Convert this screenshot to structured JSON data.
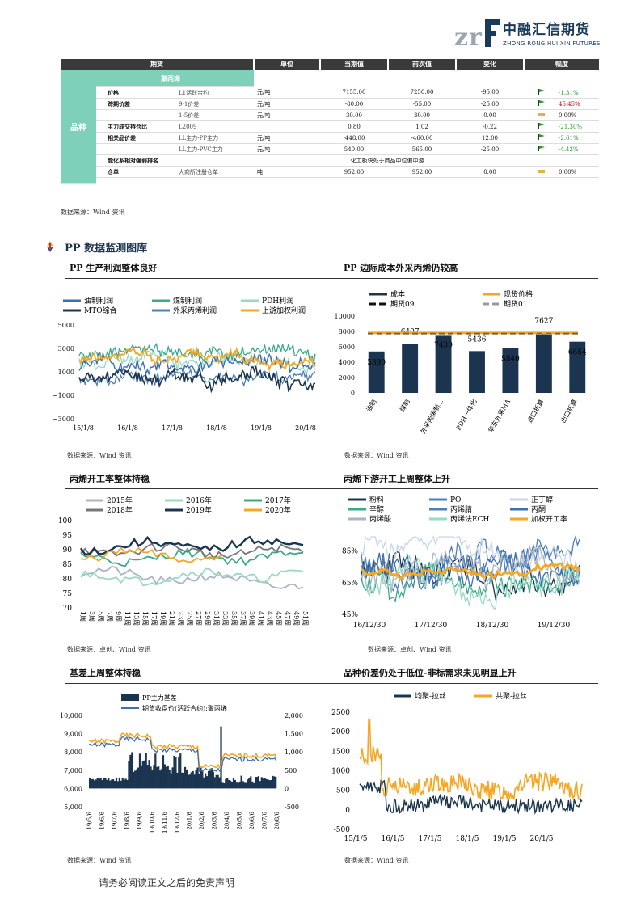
{
  "header": {
    "logo_cn": "中融汇信期货",
    "logo_en": "ZHONG RONG HUI XIN FUTURES"
  },
  "table": {
    "col_headers": [
      "期货",
      "单位",
      "当期值",
      "前次值",
      "变化",
      "幅度"
    ],
    "category": "品种",
    "sub_header": "聚丙烯",
    "rows": [
      {
        "label": "价格",
        "item": "L1活跃合约",
        "unit": "元/吨",
        "cur": "7155.00",
        "prev": "7250.00",
        "chg": "-95.00",
        "pct": "-1.31%",
        "dir": "neg"
      },
      {
        "label": "跨期价差",
        "item": "9-1价差",
        "unit": "元/吨",
        "cur": "-80.00",
        "prev": "-55.00",
        "chg": "-25.00",
        "pct": "45.45%",
        "dir": "pos"
      },
      {
        "label": "",
        "item": "1-5价差",
        "unit": "元/吨",
        "cur": "30.00",
        "prev": "30.00",
        "chg": "0.00",
        "pct": "0.00%",
        "dir": "flat"
      },
      {
        "label": "主力成交持仓比",
        "item": "L2009",
        "unit": "",
        "cur": "0.80",
        "prev": "1.02",
        "chg": "-0.22",
        "pct": "-21.30%",
        "dir": "neg"
      },
      {
        "label": "相关品价差",
        "item": "LL主力-PP主力",
        "unit": "元/吨",
        "cur": "-448.00",
        "prev": "-460.00",
        "chg": "12.00",
        "pct": "-2.61%",
        "dir": "neg"
      },
      {
        "label": "",
        "item": "LL主力-PVC主力",
        "unit": "元/吨",
        "cur": "540.00",
        "prev": "565.00",
        "chg": "-25.00",
        "pct": "-4.42%",
        "dir": "neg"
      },
      {
        "label": "能化系相对强弱排名",
        "item": "",
        "unit": "",
        "cur": "",
        "prev": "",
        "chg": "",
        "pct": "",
        "dir": "none",
        "span": "化工板块处于商品中位偏中游"
      },
      {
        "label": "仓单",
        "item": "大商所注册仓单",
        "unit": "吨",
        "cur": "952.00",
        "prev": "952.00",
        "chg": "0.00",
        "pct": "0.00%",
        "dir": "flat"
      }
    ],
    "source": "数据来源：Wind 资讯"
  },
  "section_title": "PP 数据监测图库",
  "colors": {
    "teal": "#7fd0b8",
    "dark": "#3a3a3a",
    "navy": "#1b3550",
    "orange": "#f5a623",
    "blue": "#3e6fb0",
    "green": "#3aaa8a",
    "lightgreen": "#9ad9c4"
  },
  "charts": {
    "c1": {
      "title": "PP 生产利润整体良好",
      "source": "数据来源：Wind 资讯",
      "legend": [
        "油制利润",
        "煤制利润",
        "PDH利润",
        "MTO综合",
        "外采丙烯利润",
        "上游加权利润"
      ],
      "yticks": [
        "5000",
        "3000",
        "1000",
        "−1000",
        "−3000"
      ],
      "xticks": [
        "15/1/8",
        "16/1/8",
        "17/1/8",
        "18/1/8",
        "19/1/8",
        "20/1/8"
      ]
    },
    "c2": {
      "title": "PP 边际成本外采丙烯仍较高",
      "source": "数据来源：Wind 资讯",
      "legend": [
        "成本",
        "现货价格",
        "期货09",
        "期货01"
      ],
      "yticks": [
        "10000",
        "8000",
        "6000",
        "4000",
        "2000",
        "0"
      ]
    },
    "c3": {
      "title": "丙烯开工率整体持稳",
      "source": "数据来源：卓创、Wind 资讯",
      "legend": [
        "2015年",
        "2016年",
        "2017年",
        "2018年",
        "2019年",
        "2020年"
      ],
      "yticks": [
        "100",
        "95",
        "90",
        "85",
        "80",
        "75",
        "70"
      ]
    },
    "c4": {
      "title": "丙烯下游开工上周整体上升",
      "source": "数据来源：卓创、Wind 资讯",
      "legend": [
        "粉料",
        "PO",
        "正丁醇",
        "辛醇",
        "丙烯腈",
        "丙酮",
        "丙烯酸",
        "丙烯法ECH",
        "加权开工率"
      ],
      "yticks": [
        "85%",
        "65%",
        "45%"
      ],
      "xticks": [
        "16/12/30",
        "17/12/30",
        "18/12/30",
        "19/12/30"
      ]
    },
    "c5": {
      "title": "基差上周整体持稳",
      "source": "数据来源：Wind 资讯",
      "legend": [
        "PP主力基差",
        "期货收盘价(活跃合约):聚丙烯"
      ],
      "yticks_left": [
        "10,000",
        "9,000",
        "8,000",
        "7,000",
        "6,000",
        "5,000"
      ],
      "yticks_right": [
        "2,000",
        "1,500",
        "1,000",
        "500",
        "0",
        "-500"
      ]
    },
    "c6": {
      "title": "品种价差仍处于低位-非标需求未见明显上升",
      "source": "数据来源：Wind 资讯",
      "legend": [
        "均聚-拉丝",
        "共聚-拉丝"
      ],
      "yticks": [
        "2500",
        "2000",
        "1500",
        "1000",
        "500",
        "0",
        "-500"
      ],
      "xticks": [
        "15/1/5",
        "16/1/5",
        "17/1/5",
        "18/1/5",
        "19/1/5",
        "20/1/5"
      ]
    }
  },
  "chart_data": [
    {
      "type": "bar",
      "title": "",
      "categories": [
        "油制",
        "煤制",
        "外采丙烯制...",
        "PDH一体化",
        "华东外采MA",
        "进口折算",
        "出口折算"
      ],
      "series": [
        {
          "name": "成本",
          "values": [
            5390,
            6407,
            7430,
            5436,
            5840,
            7627,
            6664
          ]
        }
      ],
      "lines": [
        {
          "name": "现货价格",
          "value": 7800
        },
        {
          "name": "期货09",
          "value": 7700
        },
        {
          "name": "期货01",
          "value": 7650
        }
      ],
      "ylim": [
        0,
        10000
      ]
    }
  ],
  "footer": "请务必阅读正文之后的免责声明"
}
